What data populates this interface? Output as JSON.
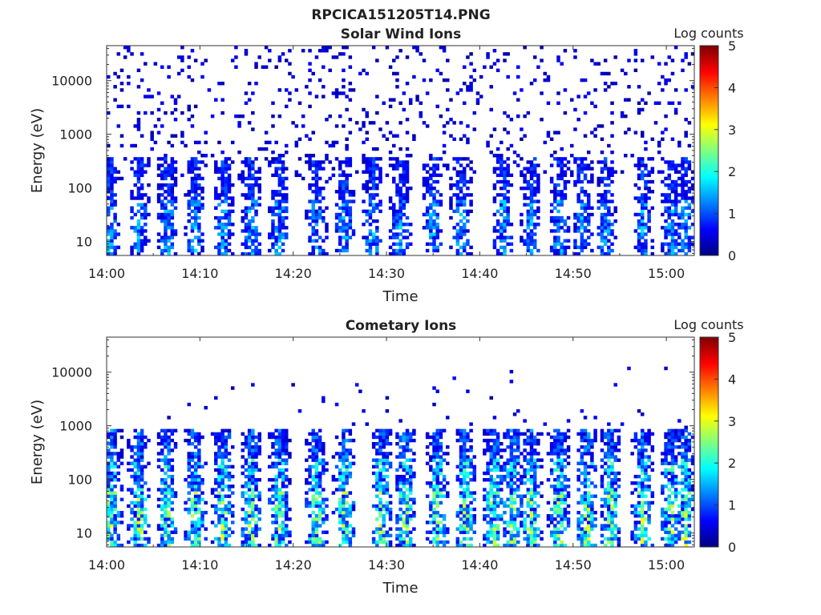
{
  "figure": {
    "suptitle": "RPCICA151205T14.PNG"
  },
  "chart_data": [
    {
      "type": "heatmap",
      "title": "Solar Wind Ions",
      "xlabel": "Time",
      "ylabel": "Energy (eV)",
      "x_range_minutes": [
        0,
        63
      ],
      "xticks": [
        "14:00",
        "14:10",
        "14:20",
        "14:30",
        "14:40",
        "14:50",
        "15:00"
      ],
      "xtick_values_minutes": [
        0,
        10,
        20,
        30,
        40,
        50,
        60
      ],
      "y_scale": "log",
      "ylim": [
        5.5,
        45000
      ],
      "yticks": [
        "10",
        "100",
        "1000",
        "10000"
      ],
      "ytick_values": [
        10,
        100,
        1000,
        10000
      ],
      "colorbar": {
        "title": "Log counts",
        "range": [
          0,
          5
        ],
        "ticks": [
          "0",
          "1",
          "2",
          "3",
          "4",
          "5"
        ],
        "colormap": "jet"
      },
      "bursts_minutes": [
        0.3,
        3.5,
        6.5,
        9.5,
        12.5,
        15.5,
        18.5,
        22.5,
        25.5,
        28.5,
        31.5,
        35.0,
        38.0,
        42.5,
        45.5,
        48.5,
        51.0,
        53.5,
        57.5,
        60.5,
        62.0
      ],
      "peak_log_counts": 2.0
    },
    {
      "type": "heatmap",
      "title": "Cometary Ions",
      "xlabel": "Time",
      "ylabel": "Energy (eV)",
      "x_range_minutes": [
        0,
        63
      ],
      "xticks": [
        "14:00",
        "14:10",
        "14:20",
        "14:30",
        "14:40",
        "14:50",
        "15:00"
      ],
      "xtick_values_minutes": [
        0,
        10,
        20,
        30,
        40,
        50,
        60
      ],
      "y_scale": "log",
      "ylim": [
        5.5,
        45000
      ],
      "yticks": [
        "10",
        "100",
        "1000",
        "10000"
      ],
      "ytick_values": [
        10,
        100,
        1000,
        10000
      ],
      "colorbar": {
        "title": "Log counts",
        "range": [
          0,
          5
        ],
        "ticks": [
          "0",
          "1",
          "2",
          "3",
          "4",
          "5"
        ],
        "colormap": "jet"
      },
      "bursts_minutes": [
        0.5,
        3.5,
        6.5,
        9.5,
        12.5,
        15.5,
        18.5,
        22.5,
        25.5,
        29.5,
        32.0,
        35.5,
        38.5,
        41.5,
        43.5,
        45.5,
        48.5,
        51.5,
        54.0,
        57.5,
        60.5,
        62.0
      ],
      "peak_log_counts": 3.4
    }
  ]
}
